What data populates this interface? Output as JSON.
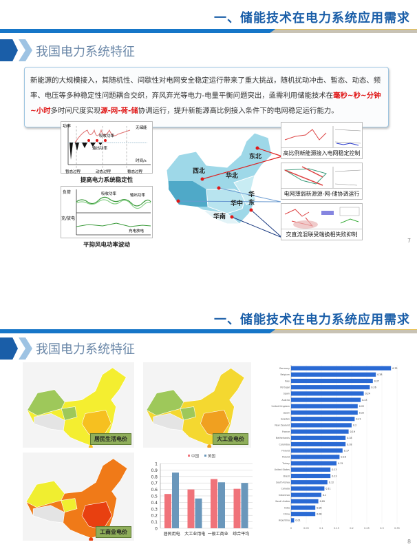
{
  "slide1": {
    "header_title": "一、储能技术在电力系统应用需求",
    "subtitle": "我国电力系统特征",
    "paragraph": [
      {
        "text": "新能源的大规模接入，其随机性、间歇性对电网安全稳定运行带来了重大挑战，随机扰动冲击、暂态、动态、频率、电压等多种稳定性问题耦合交织，弃风弃光等电力-电量平衡问题突出，亟需利用储能技术在",
        "red": false
      },
      {
        "text": "毫秒~秒~分钟~小时",
        "red": true
      },
      {
        "text": "多时间尺度实现",
        "red": false
      },
      {
        "text": "源-网-荷-储",
        "red": true
      },
      {
        "text": "协调运行，提升新能源高比例接入条件下的电网稳定运行能力。",
        "red": false
      }
    ],
    "diagram1": {
      "ylabel": "功率",
      "xlabel": "时间/s",
      "curve_label": "无储能",
      "absorb": "吸收功率",
      "output": "输出功率",
      "phases": [
        "暂态过程",
        "动态过程",
        "稳态过程"
      ],
      "caption": "提高电力系统稳定性"
    },
    "diagram2": {
      "ylabel_top": "负荷",
      "ylabel_bottom": "充/放电",
      "absorb": "吸收功率",
      "output": "输出功率",
      "charge": "充电放电",
      "caption": "平抑风电功率波动"
    },
    "map_regions": [
      "东北",
      "西北",
      "华北",
      "华中",
      "华东",
      "华南"
    ],
    "map_region_east_parts": [
      "华",
      "东"
    ],
    "panels": [
      "高比例新能源接入电网稳定控制",
      "电网薄弱新源源-网-储协调运行",
      "交直流混联受端换相失败抑制"
    ],
    "page_number": "7",
    "colors": {
      "accent": "#1a5ea8",
      "highlight": "#e01818"
    }
  },
  "slide2": {
    "header_title": "一、储能技术在电力系统应用需求",
    "subtitle": "我国电力系统特征",
    "maps": [
      {
        "label": "居民生活电价"
      },
      {
        "label": "大工业电价"
      },
      {
        "label": "工商业电价"
      }
    ],
    "page_number": "8"
  },
  "chart_data": [
    {
      "type": "bar",
      "categories": [
        "居民用电",
        "大工业用电",
        "一般工商业",
        "综合平均"
      ],
      "series": [
        {
          "name": "中国",
          "values": [
            0.53,
            0.6,
            0.76,
            0.61
          ],
          "color": "#f0737a"
        },
        {
          "name": "美国",
          "values": [
            0.86,
            0.46,
            0.71,
            0.7
          ],
          "color": "#6a97bb"
        }
      ],
      "ylim": [
        0,
        1
      ],
      "yticks": [
        "0",
        "0.1",
        "0.2",
        "0.3",
        "0.4",
        "0.5",
        "0.6",
        "0.7",
        "0.8",
        "0.9",
        "1"
      ],
      "grid": true,
      "legend": "top"
    },
    {
      "type": "bar",
      "orientation": "horizontal",
      "categories": [
        "Germany",
        "Belgium",
        "Italy",
        "Portugal",
        "Spain",
        "Austria",
        "United Kingdom",
        "Japan",
        "Sweden",
        "New Zealand",
        "France",
        "Netherlands",
        "Colombia",
        "Finland",
        "Poland",
        "Turkey",
        "United States",
        "Brazil",
        "South Korea",
        "Canada",
        "Indonesia",
        "Saudi Arabia",
        "India",
        "China",
        "Argentina"
      ],
      "values": [
        0.33,
        0.28,
        0.27,
        0.26,
        0.24,
        0.23,
        0.22,
        0.22,
        0.21,
        0.2,
        0.19,
        0.18,
        0.18,
        0.17,
        0.16,
        0.15,
        0.13,
        0.13,
        0.12,
        0.11,
        0.1,
        0.09,
        0.08,
        0.08,
        0.01
      ],
      "xlim": [
        0,
        0.35
      ],
      "xticks": [
        "0",
        "0.05",
        "0.1",
        "0.15",
        "0.2",
        "0.25",
        "0.3",
        "0.35"
      ],
      "color": "#2a6ad4",
      "grid": true
    }
  ]
}
